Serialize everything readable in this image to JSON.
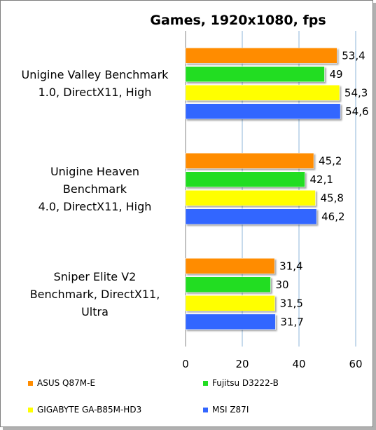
{
  "chart_data": {
    "type": "bar",
    "orientation": "horizontal",
    "title": "Games, 1920x1080, fps",
    "categories": [
      [
        "Unigine Valley Benchmark",
        "1.0, DirectX11, High"
      ],
      [
        "Unigine Heaven",
        "Benchmark",
        "4.0, DirectX11, High"
      ],
      [
        "Sniper Elite V2",
        "Benchmark, DirectX11,",
        "Ultra"
      ]
    ],
    "series": [
      {
        "name": "ASUS Q87M-E",
        "color": "#ff8c00",
        "values": [
          53.4,
          45.2,
          31.4
        ],
        "labels": [
          "53,4",
          "45,2",
          "31,4"
        ]
      },
      {
        "name": "Fujitsu D3222-B",
        "color": "#22dd22",
        "values": [
          49,
          42.1,
          30
        ],
        "labels": [
          "49",
          "42,1",
          "30"
        ]
      },
      {
        "name": "GIGABYTE GA-B85M-HD3",
        "color": "#ffff00",
        "values": [
          54.3,
          45.8,
          31.5
        ],
        "labels": [
          "54,3",
          "45,8",
          "31,5"
        ]
      },
      {
        "name": "MSI Z87I",
        "color": "#3366ff",
        "values": [
          54.6,
          46.2,
          31.7
        ],
        "labels": [
          "54,6",
          "46,2",
          "31,7"
        ]
      }
    ],
    "xlim": [
      0,
      60
    ],
    "xticks": [
      "0",
      "20",
      "40",
      "60"
    ],
    "grid": true,
    "legend_position": "bottom"
  }
}
